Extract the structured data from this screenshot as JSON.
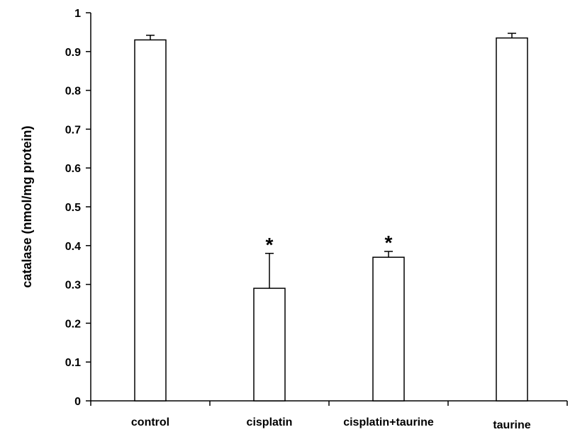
{
  "chart_data": {
    "type": "bar",
    "title": "",
    "xlabel": "",
    "ylabel": "catalase (nmol/mg protein)",
    "ylim": [
      0,
      1
    ],
    "yticks": [
      0,
      0.1,
      0.2,
      0.3,
      0.4,
      0.5,
      0.6,
      0.7,
      0.8,
      0.9,
      1
    ],
    "ytick_labels": [
      "0",
      "0.1",
      "0.2",
      "0.3",
      "0.4",
      "0.5",
      "0.6",
      "0.7",
      "0.8",
      "0.9",
      "1"
    ],
    "categories": [
      "control",
      "cisplatin",
      "cisplatin+taurine",
      "taurine"
    ],
    "values": [
      0.93,
      0.29,
      0.37,
      0.935
    ],
    "errors": [
      0.012,
      0.09,
      0.015,
      0.012
    ],
    "annotations": [
      "",
      "*",
      "*",
      ""
    ],
    "grid": false,
    "bar_fill": "#ffffff",
    "bar_stroke": "#000000"
  }
}
